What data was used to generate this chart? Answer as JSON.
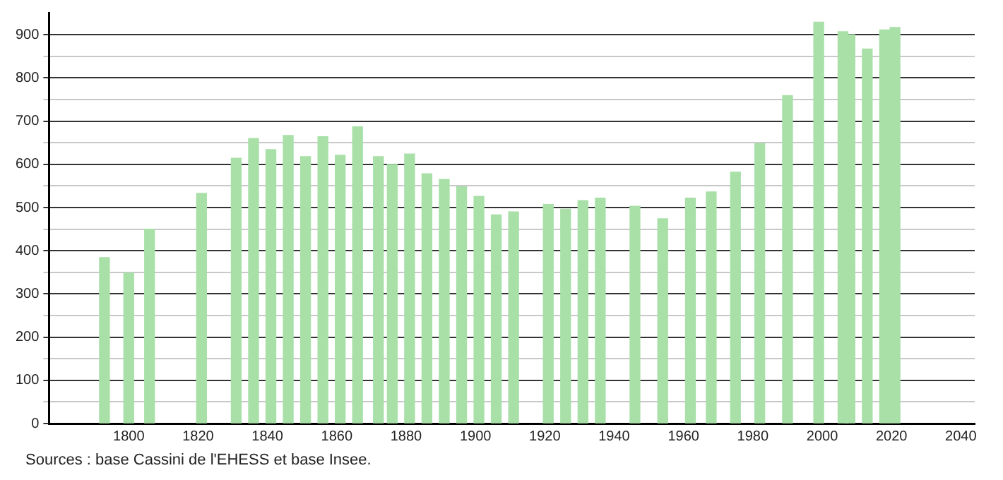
{
  "chart_data": {
    "type": "bar",
    "x": [
      1793,
      1800,
      1806,
      1821,
      1831,
      1836,
      1841,
      1846,
      1851,
      1856,
      1861,
      1866,
      1872,
      1876,
      1881,
      1886,
      1891,
      1896,
      1901,
      1906,
      1911,
      1921,
      1926,
      1931,
      1936,
      1946,
      1954,
      1962,
      1968,
      1975,
      1982,
      1990,
      1999,
      2006,
      2008,
      2013,
      2018,
      2021
    ],
    "values": [
      384,
      348,
      450,
      533,
      614,
      660,
      634,
      667,
      618,
      664,
      621,
      687,
      618,
      600,
      624,
      578,
      565,
      548,
      526,
      483,
      490,
      507,
      496,
      516,
      522,
      503,
      474,
      522,
      536,
      582,
      648,
      759,
      929,
      907,
      900,
      867,
      911,
      917
    ],
    "color": "#a8e0a8",
    "xlim": [
      1777,
      2044
    ],
    "xticks": [
      1800,
      1820,
      1840,
      1860,
      1880,
      1900,
      1920,
      1940,
      1960,
      1980,
      2000,
      2020,
      2040
    ],
    "ylim": [
      0,
      951
    ],
    "yticks": [
      0,
      {
        "value": 50,
        "label": null
      },
      100,
      {
        "value": 150,
        "label": null
      },
      200,
      {
        "value": 250,
        "label": null
      },
      300,
      {
        "value": 350,
        "label": null
      },
      400,
      {
        "value": 450,
        "label": null
      },
      500,
      {
        "value": 550,
        "label": null
      },
      600,
      {
        "value": 650,
        "label": null
      },
      700,
      {
        "value": 750,
        "label": null
      },
      800,
      {
        "value": 850,
        "label": null
      },
      900
    ],
    "grid": "y",
    "annotations": [
      "Sources : base Cassini de l'EHESS et base Insee."
    ]
  }
}
